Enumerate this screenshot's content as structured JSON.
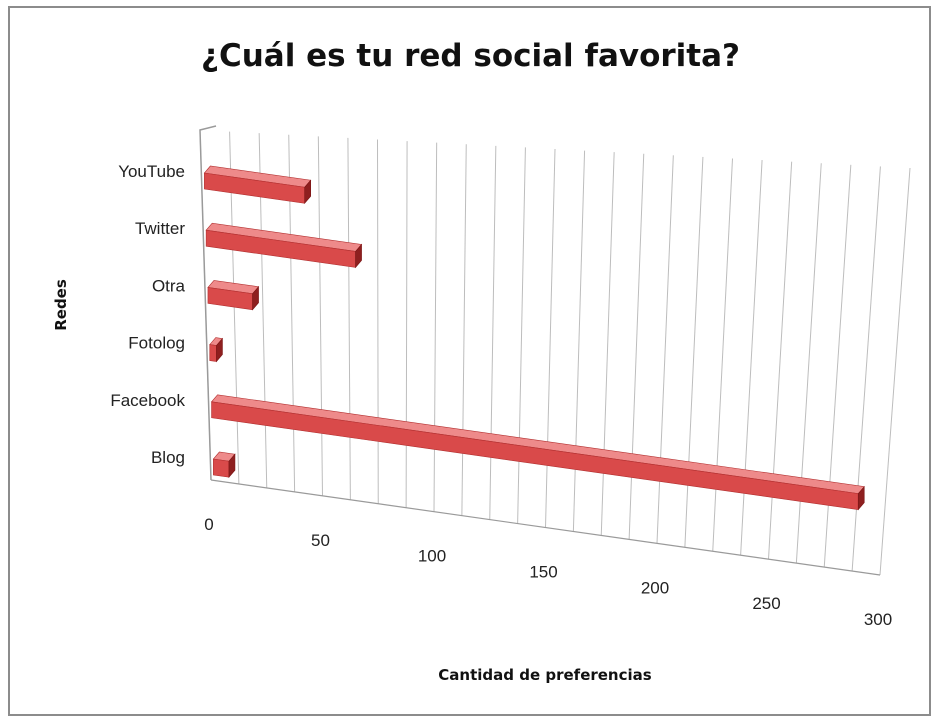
{
  "chart_data": {
    "type": "bar",
    "orientation": "horizontal",
    "title": "¿Cuál es tu red social favorita?",
    "xlabel": "Cantidad de preferencias",
    "ylabel": "Redes",
    "categories": [
      "YouTube",
      "Twitter",
      "Otra",
      "Fotolog",
      "Facebook",
      "Blog"
    ],
    "values": [
      45,
      67,
      20,
      3,
      290,
      7
    ],
    "x_ticks": [
      0,
      50,
      100,
      150,
      200,
      250,
      300
    ],
    "xlim": [
      0,
      300
    ],
    "grid": true,
    "legend": "none",
    "colors": {
      "bar_front": "#d94a4a",
      "bar_top": "#ee8a8a",
      "bar_side": "#8e1f1f",
      "grid": "#bdbdbd"
    }
  }
}
